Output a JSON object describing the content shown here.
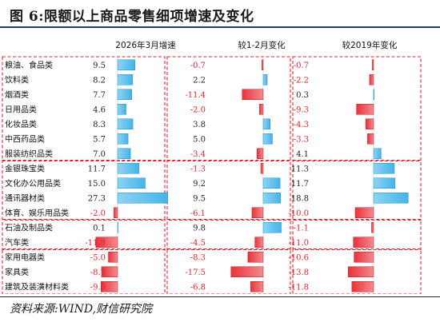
{
  "title": "图 6:限额以上商品零售细项增速及变化",
  "source": "资料来源:WIND,财信研究院",
  "colors": {
    "blue_bar": "#43b4e8",
    "red_bar": "#e8323a",
    "box": "#e0262e",
    "negative_text": "#e0262e",
    "positive_text": "#222222"
  },
  "chart_data": {
    "type": "bar",
    "orientation": "horizontal",
    "categories": [
      "粮油、食品类",
      "饮料类",
      "烟酒类",
      "日用品类",
      "化妆品类",
      "中西药品类",
      "服装纺织品类",
      "金银珠宝类",
      "文化办公用品类",
      "通讯器材类",
      "体育、娱乐用品类",
      "石油及制品类",
      "汽车类",
      "家用电器类",
      "家具类",
      "建筑及装潢材料类"
    ],
    "series": [
      {
        "name": "2026年3月增速",
        "values": [
          9.5,
          8.2,
          7.7,
          4.6,
          8.3,
          5.7,
          7.0,
          11.7,
          15.0,
          27.3,
          -2.0,
          0.1,
          -11.8,
          -5.0,
          -8.7,
          -9.0
        ]
      },
      {
        "name": "较1-2月变化",
        "values": [
          -0.7,
          2.2,
          -11.4,
          -2.0,
          3.8,
          5.0,
          -3.4,
          -1.3,
          9.2,
          9.5,
          -6.1,
          9.8,
          -4.5,
          -8.3,
          -17.5,
          -6.8
        ]
      },
      {
        "name": "较2019年变化",
        "values": [
          -0.7,
          -2.2,
          0.3,
          -9.3,
          -4.3,
          -3.3,
          4.1,
          11.3,
          11.7,
          18.8,
          -10.0,
          -1.1,
          -11.0,
          -10.6,
          -13.8,
          -11.8
        ]
      }
    ],
    "groups": [
      [
        0,
        6
      ],
      [
        7,
        10
      ],
      [
        11,
        12
      ],
      [
        13,
        15
      ]
    ]
  }
}
